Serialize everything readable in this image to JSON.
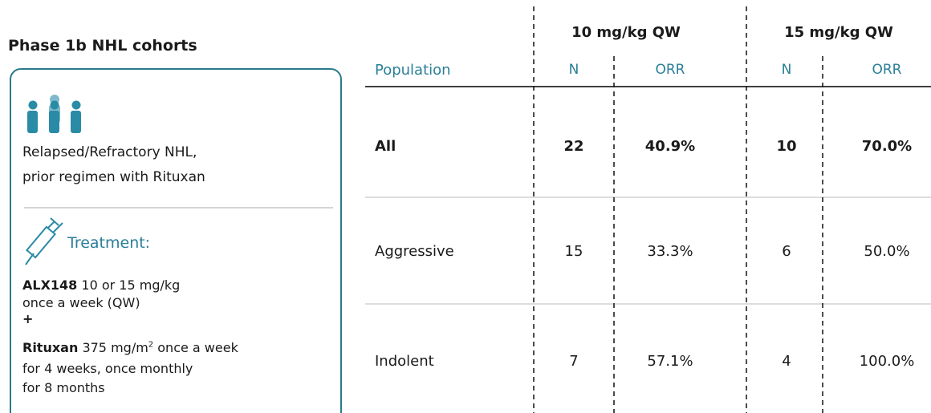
{
  "left": {
    "title": "Phase 1b NHL cohorts",
    "population": [
      "Relapsed/Refractory NHL,",
      "prior regimen with Rituxan"
    ],
    "treatment_heading": "Treatment:",
    "treatment": {
      "line1_bold": "ALX148",
      "line1": " 10 or 15 mg/kg",
      "line2": "once a week (QW)",
      "line3": "+",
      "line4_bold": "Rituxan",
      "line4_a": " 375 mg/m",
      "line4_sup": "2",
      "line4_b": " once a week",
      "line5": "for 4 weeks, once monthly",
      "line6": "for 8 months"
    }
  },
  "table": {
    "groups": [
      "10 mg/kg QW",
      "15 mg/kg QW"
    ],
    "header": [
      "Population",
      "N",
      "ORR",
      "N",
      "ORR"
    ],
    "rows": [
      [
        "All",
        22,
        "40.9%",
        10,
        "70.0%"
      ],
      [
        "Aggressive",
        15,
        "33.3%",
        6,
        "50.0%"
      ],
      [
        "Indolent",
        7,
        "57.1%",
        4,
        "100.0%"
      ]
    ]
  }
}
